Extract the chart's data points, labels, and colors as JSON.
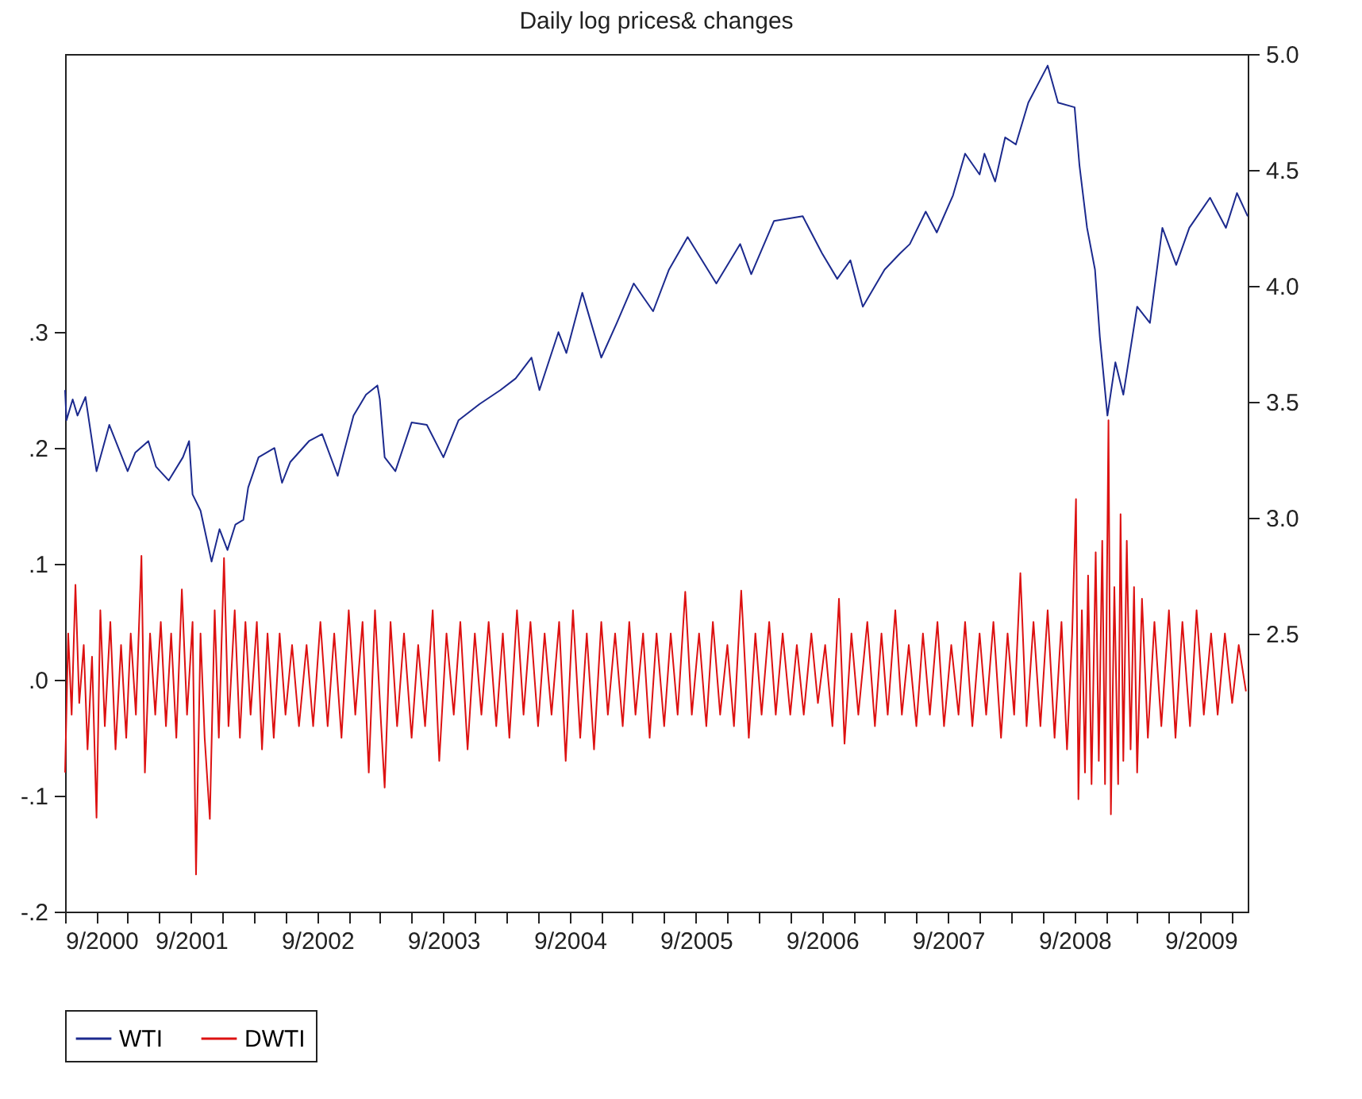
{
  "chart_data": {
    "type": "line",
    "title": "Daily log prices& changes",
    "legend": "bottom",
    "xlim": [
      "2000-09-01",
      "2010-01-15"
    ],
    "xticks": [
      {
        "value": "2000-09-01",
        "label": "9/2000"
      },
      {
        "value": "2000-12-01",
        "label": null
      },
      {
        "value": "2001-03-01",
        "label": null
      },
      {
        "value": "2001-06-01",
        "label": null
      },
      {
        "value": "2001-09-01",
        "label": "9/2001"
      },
      {
        "value": "2001-12-01",
        "label": null
      },
      {
        "value": "2002-03-01",
        "label": null
      },
      {
        "value": "2002-06-01",
        "label": null
      },
      {
        "value": "2002-09-01",
        "label": "9/2002"
      },
      {
        "value": "2002-12-01",
        "label": null
      },
      {
        "value": "2003-03-01",
        "label": null
      },
      {
        "value": "2003-06-01",
        "label": null
      },
      {
        "value": "2003-09-01",
        "label": "9/2003"
      },
      {
        "value": "2003-12-01",
        "label": null
      },
      {
        "value": "2004-03-01",
        "label": null
      },
      {
        "value": "2004-06-01",
        "label": null
      },
      {
        "value": "2004-09-01",
        "label": "9/2004"
      },
      {
        "value": "2004-12-01",
        "label": null
      },
      {
        "value": "2005-03-01",
        "label": null
      },
      {
        "value": "2005-06-01",
        "label": null
      },
      {
        "value": "2005-09-01",
        "label": "9/2005"
      },
      {
        "value": "2005-12-01",
        "label": null
      },
      {
        "value": "2006-03-01",
        "label": null
      },
      {
        "value": "2006-06-01",
        "label": null
      },
      {
        "value": "2006-09-01",
        "label": "9/2006"
      },
      {
        "value": "2006-12-01",
        "label": null
      },
      {
        "value": "2007-03-01",
        "label": null
      },
      {
        "value": "2007-06-01",
        "label": null
      },
      {
        "value": "2007-09-01",
        "label": "9/2007"
      },
      {
        "value": "2007-12-01",
        "label": null
      },
      {
        "value": "2008-03-01",
        "label": null
      },
      {
        "value": "2008-06-01",
        "label": null
      },
      {
        "value": "2008-09-01",
        "label": "9/2008"
      },
      {
        "value": "2008-12-01",
        "label": null
      },
      {
        "value": "2009-03-01",
        "label": null
      },
      {
        "value": "2009-06-01",
        "label": null
      },
      {
        "value": "2009-09-01",
        "label": "9/2009"
      },
      {
        "value": "2009-12-01",
        "label": null
      }
    ],
    "ylim": [
      -0.2,
      0.54
    ],
    "yticks": [
      {
        "value": -0.2,
        "label": "-.2"
      },
      {
        "value": -0.1,
        "label": "-.1"
      },
      {
        "value": 0,
        "label": ".0"
      },
      {
        "value": 0.1,
        "label": ".1"
      },
      {
        "value": 0.2,
        "label": ".2"
      },
      {
        "value": 0.3,
        "label": ".3"
      }
    ],
    "y2lim": [
      1.3,
      5.0
    ],
    "y2ticks": [
      {
        "value": 2.5,
        "label": "2.5"
      },
      {
        "value": 3.0,
        "label": "3.0"
      },
      {
        "value": 3.5,
        "label": "3.5"
      },
      {
        "value": 4.0,
        "label": "4.0"
      },
      {
        "value": 4.5,
        "label": "4.5"
      },
      {
        "value": 5.0,
        "label": "5.0"
      }
    ],
    "series": [
      {
        "name": "WTI",
        "color": "#1c2a8e",
        "axis": "y2",
        "x": [
          "2000-09-01",
          "2000-09-05",
          "2000-09-23",
          "2000-10-07",
          "2000-10-30",
          "2000-12-01",
          "2001-01-07",
          "2001-03-01",
          "2001-03-23",
          "2001-04-30",
          "2001-05-22",
          "2001-06-28",
          "2001-08-08",
          "2001-08-26",
          "2001-09-05",
          "2001-09-28",
          "2001-10-30",
          "2001-11-22",
          "2001-12-15",
          "2002-01-07",
          "2002-01-30",
          "2002-02-13",
          "2002-03-15",
          "2002-04-30",
          "2002-05-22",
          "2002-06-15",
          "2002-08-08",
          "2002-09-15",
          "2002-10-30",
          "2002-12-15",
          "2003-01-20",
          "2003-02-22",
          "2003-03-01",
          "2003-03-15",
          "2003-04-15",
          "2003-06-01",
          "2003-07-15",
          "2003-09-01",
          "2003-10-15",
          "2003-12-15",
          "2004-02-13",
          "2004-03-28",
          "2004-05-13",
          "2004-06-05",
          "2004-07-30",
          "2004-08-22",
          "2004-10-07",
          "2004-12-01",
          "2005-01-15",
          "2005-03-05",
          "2005-04-30",
          "2005-06-15",
          "2005-08-08",
          "2005-10-30",
          "2006-01-07",
          "2006-02-08",
          "2006-04-15",
          "2006-07-07",
          "2006-09-01",
          "2006-10-15",
          "2006-11-22",
          "2006-12-28",
          "2007-03-01",
          "2007-04-15",
          "2007-05-13",
          "2007-06-28",
          "2007-07-30",
          "2007-09-15",
          "2007-10-20",
          "2007-12-01",
          "2007-12-15",
          "2008-01-15",
          "2008-02-13",
          "2008-03-15",
          "2008-04-20",
          "2008-06-15",
          "2008-07-15",
          "2008-09-01",
          "2008-09-15",
          "2008-10-07",
          "2008-10-30",
          "2008-11-13",
          "2008-12-05",
          "2008-12-28",
          "2009-01-20",
          "2009-03-01",
          "2009-04-07",
          "2009-05-13",
          "2009-06-22",
          "2009-07-30",
          "2009-09-28",
          "2009-11-13",
          "2009-12-15",
          "2010-01-15"
        ],
        "values": [
          3.55,
          3.42,
          3.51,
          3.44,
          3.52,
          3.2,
          3.4,
          3.2,
          3.28,
          3.33,
          3.22,
          3.16,
          3.26,
          3.33,
          3.1,
          3.03,
          2.81,
          2.95,
          2.86,
          2.97,
          2.99,
          3.13,
          3.26,
          3.3,
          3.15,
          3.24,
          3.33,
          3.36,
          3.18,
          3.44,
          3.53,
          3.57,
          3.51,
          3.26,
          3.2,
          3.41,
          3.4,
          3.26,
          3.42,
          3.49,
          3.55,
          3.6,
          3.69,
          3.55,
          3.8,
          3.71,
          3.97,
          3.69,
          3.84,
          4.01,
          3.89,
          4.07,
          4.21,
          4.01,
          4.18,
          4.05,
          4.28,
          4.3,
          4.14,
          4.03,
          4.11,
          3.91,
          4.07,
          4.14,
          4.18,
          4.32,
          4.23,
          4.39,
          4.57,
          4.48,
          4.57,
          4.45,
          4.64,
          4.61,
          4.79,
          4.95,
          4.79,
          4.77,
          4.52,
          4.25,
          4.07,
          3.78,
          3.44,
          3.67,
          3.53,
          3.91,
          3.84,
          4.25,
          4.09,
          4.25,
          4.38,
          4.25,
          4.4,
          4.3
        ]
      },
      {
        "name": "DWTI",
        "color": "#dd1111",
        "x": [
          "2000-09-01",
          "2000-09-10",
          "2000-09-20",
          "2000-10-01",
          "2000-10-12",
          "2000-10-25",
          "2000-11-05",
          "2000-11-18",
          "2000-12-01",
          "2000-12-12",
          "2000-12-25",
          "2001-01-10",
          "2001-01-25",
          "2001-02-10",
          "2001-02-25",
          "2001-03-10",
          "2001-03-25",
          "2001-04-10",
          "2001-04-20",
          "2001-05-05",
          "2001-05-20",
          "2001-06-05",
          "2001-06-20",
          "2001-07-05",
          "2001-07-20",
          "2001-08-05",
          "2001-08-20",
          "2001-09-05",
          "2001-09-15",
          "2001-09-28",
          "2001-10-10",
          "2001-10-25",
          "2001-11-08",
          "2001-11-20",
          "2001-12-05",
          "2001-12-18",
          "2002-01-05",
          "2002-01-20",
          "2002-02-05",
          "2002-02-20",
          "2002-03-10",
          "2002-03-25",
          "2002-04-10",
          "2002-04-28",
          "2002-05-15",
          "2002-06-01",
          "2002-06-20",
          "2002-07-10",
          "2002-08-01",
          "2002-08-20",
          "2002-09-10",
          "2002-10-01",
          "2002-10-20",
          "2002-11-10",
          "2002-12-01",
          "2002-12-20",
          "2003-01-10",
          "2003-01-28",
          "2003-02-15",
          "2003-03-05",
          "2003-03-15",
          "2003-04-01",
          "2003-04-20",
          "2003-05-10",
          "2003-06-01",
          "2003-06-20",
          "2003-07-10",
          "2003-08-01",
          "2003-08-20",
          "2003-09-10",
          "2003-10-01",
          "2003-10-20",
          "2003-11-10",
          "2003-12-01",
          "2003-12-20",
          "2004-01-10",
          "2004-02-01",
          "2004-02-20",
          "2004-03-10",
          "2004-04-01",
          "2004-04-20",
          "2004-05-10",
          "2004-06-01",
          "2004-06-20",
          "2004-07-10",
          "2004-08-01",
          "2004-08-20",
          "2004-09-10",
          "2004-10-01",
          "2004-10-20",
          "2004-11-10",
          "2004-12-01",
          "2004-12-20",
          "2005-01-10",
          "2005-02-01",
          "2005-02-20",
          "2005-03-10",
          "2005-04-01",
          "2005-04-20",
          "2005-05-10",
          "2005-06-01",
          "2005-06-20",
          "2005-07-10",
          "2005-08-01",
          "2005-08-20",
          "2005-09-10",
          "2005-10-01",
          "2005-10-20",
          "2005-11-10",
          "2005-12-01",
          "2005-12-20",
          "2006-01-10",
          "2006-02-01",
          "2006-02-20",
          "2006-03-10",
          "2006-04-01",
          "2006-04-20",
          "2006-05-10",
          "2006-06-01",
          "2006-06-20",
          "2006-07-10",
          "2006-08-01",
          "2006-08-20",
          "2006-09-10",
          "2006-10-01",
          "2006-10-20",
          "2006-11-05",
          "2006-11-25",
          "2006-12-15",
          "2007-01-10",
          "2007-02-01",
          "2007-02-20",
          "2007-03-10",
          "2007-04-01",
          "2007-04-20",
          "2007-05-10",
          "2007-06-01",
          "2007-06-20",
          "2007-07-10",
          "2007-08-01",
          "2007-08-20",
          "2007-09-10",
          "2007-10-01",
          "2007-10-20",
          "2007-11-10",
          "2007-12-01",
          "2007-12-20",
          "2008-01-10",
          "2008-02-01",
          "2008-02-20",
          "2008-03-10",
          "2008-03-28",
          "2008-04-15",
          "2008-05-05",
          "2008-05-25",
          "2008-06-15",
          "2008-07-05",
          "2008-07-25",
          "2008-08-10",
          "2008-08-25",
          "2008-09-05",
          "2008-09-12",
          "2008-09-22",
          "2008-10-01",
          "2008-10-10",
          "2008-10-20",
          "2008-11-01",
          "2008-11-10",
          "2008-11-20",
          "2008-11-28",
          "2008-12-08",
          "2008-12-15",
          "2008-12-25",
          "2009-01-05",
          "2009-01-12",
          "2009-01-20",
          "2009-01-30",
          "2009-02-10",
          "2009-02-20",
          "2009-03-01",
          "2009-03-15",
          "2009-04-01",
          "2009-04-20",
          "2009-05-10",
          "2009-06-01",
          "2009-06-20",
          "2009-07-10",
          "2009-08-01",
          "2009-08-20",
          "2009-09-10",
          "2009-10-01",
          "2009-10-20",
          "2009-11-10",
          "2009-12-01",
          "2009-12-20",
          "2010-01-10"
        ],
        "values": [
          -0.08,
          0.04,
          -0.03,
          0.082,
          -0.02,
          0.03,
          -0.06,
          0.02,
          -0.119,
          0.06,
          -0.04,
          0.05,
          -0.06,
          0.03,
          -0.05,
          0.04,
          -0.03,
          0.107,
          -0.08,
          0.04,
          -0.03,
          0.05,
          -0.04,
          0.04,
          -0.05,
          0.078,
          -0.03,
          0.05,
          -0.168,
          0.04,
          -0.05,
          -0.12,
          0.06,
          -0.05,
          0.105,
          -0.04,
          0.06,
          -0.05,
          0.05,
          -0.03,
          0.05,
          -0.06,
          0.04,
          -0.05,
          0.04,
          -0.03,
          0.03,
          -0.04,
          0.03,
          -0.04,
          0.05,
          -0.04,
          0.04,
          -0.05,
          0.06,
          -0.03,
          0.05,
          -0.08,
          0.06,
          -0.04,
          -0.093,
          0.05,
          -0.04,
          0.04,
          -0.05,
          0.03,
          -0.04,
          0.06,
          -0.07,
          0.04,
          -0.03,
          0.05,
          -0.06,
          0.04,
          -0.03,
          0.05,
          -0.04,
          0.04,
          -0.05,
          0.06,
          -0.03,
          0.05,
          -0.04,
          0.04,
          -0.03,
          0.05,
          -0.07,
          0.06,
          -0.05,
          0.04,
          -0.06,
          0.05,
          -0.03,
          0.04,
          -0.04,
          0.05,
          -0.03,
          0.04,
          -0.05,
          0.04,
          -0.04,
          0.04,
          -0.03,
          0.076,
          -0.03,
          0.04,
          -0.04,
          0.05,
          -0.03,
          0.03,
          -0.04,
          0.077,
          -0.05,
          0.04,
          -0.03,
          0.05,
          -0.03,
          0.04,
          -0.03,
          0.03,
          -0.03,
          0.04,
          -0.02,
          0.03,
          -0.04,
          0.07,
          -0.055,
          0.04,
          -0.03,
          0.05,
          -0.04,
          0.04,
          -0.03,
          0.06,
          -0.03,
          0.03,
          -0.04,
          0.04,
          -0.03,
          0.05,
          -0.04,
          0.03,
          -0.03,
          0.05,
          -0.04,
          0.04,
          -0.03,
          0.05,
          -0.05,
          0.04,
          -0.03,
          0.092,
          -0.04,
          0.05,
          -0.04,
          0.06,
          -0.05,
          0.05,
          -0.06,
          0.04,
          0.156,
          -0.103,
          0.06,
          -0.08,
          0.09,
          -0.09,
          0.11,
          -0.07,
          0.12,
          -0.09,
          0.224,
          -0.116,
          0.08,
          -0.09,
          0.143,
          -0.07,
          0.12,
          -0.06,
          0.08,
          -0.08,
          0.07,
          -0.05,
          0.05,
          -0.04,
          0.06,
          -0.05,
          0.05,
          -0.04,
          0.06,
          -0.03,
          0.04,
          -0.03,
          0.04,
          -0.02,
          0.03,
          -0.01
        ]
      }
    ]
  }
}
